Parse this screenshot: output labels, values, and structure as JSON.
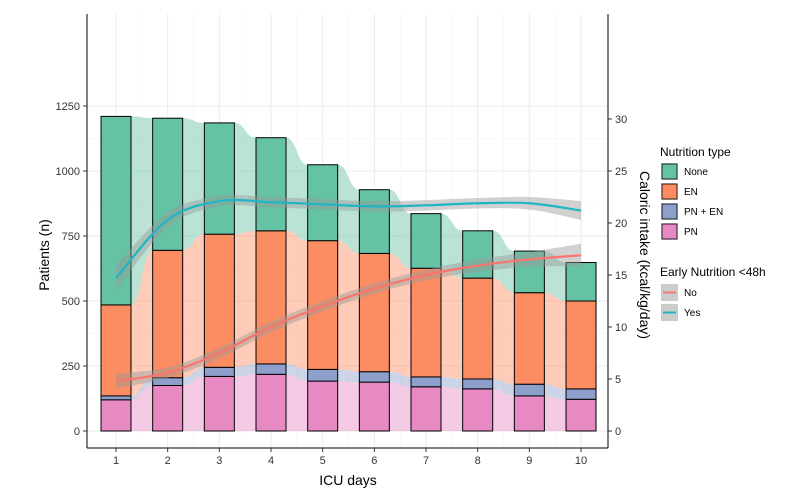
{
  "chart_data": {
    "type": "bar",
    "categories": [
      "1",
      "2",
      "3",
      "4",
      "5",
      "6",
      "7",
      "8",
      "9",
      "10"
    ],
    "xlabel": "ICU days",
    "ylabel": "Patients (n)",
    "y2label": "Caloric intake (kcal/kg/day)",
    "ylim": [
      0,
      1250
    ],
    "y2lim": [
      0,
      31
    ],
    "yticks": [
      "0",
      "250",
      "500",
      "750",
      "1000",
      "1250"
    ],
    "y2ticks": [
      "0",
      "5",
      "10",
      "15",
      "20",
      "25",
      "30"
    ],
    "stack_order": [
      "PN",
      "PN + EN",
      "EN",
      "None"
    ],
    "series": [
      {
        "name": "None",
        "color": "#66c2a5",
        "values": [
          725,
          508,
          428,
          358,
          292,
          245,
          210,
          182,
          160,
          148
        ]
      },
      {
        "name": "EN",
        "color": "#fc8d62",
        "values": [
          350,
          490,
          512,
          512,
          495,
          455,
          418,
          388,
          352,
          338
        ]
      },
      {
        "name": "PN + EN",
        "color": "#8da0cb",
        "values": [
          15,
          30,
          35,
          40,
          45,
          40,
          38,
          38,
          45,
          40
        ]
      },
      {
        "name": "PN",
        "color": "#e78ac3",
        "values": [
          120,
          175,
          210,
          218,
          192,
          188,
          170,
          162,
          135,
          122
        ]
      }
    ],
    "lines": [
      {
        "name": "No",
        "color": "#f8766d",
        "values": [
          4.8,
          5.6,
          7.5,
          10.0,
          12.0,
          13.7,
          15.0,
          15.9,
          16.5,
          16.9
        ],
        "band": [
          0.7,
          0.5,
          0.5,
          0.5,
          0.5,
          0.5,
          0.5,
          0.6,
          0.7,
          1.1
        ]
      },
      {
        "name": "Yes",
        "color": "#1fb5c4",
        "values": [
          14.7,
          20.3,
          22.1,
          22.0,
          21.8,
          21.6,
          21.7,
          21.9,
          21.9,
          21.2
        ],
        "band": [
          1.2,
          0.7,
          0.5,
          0.5,
          0.5,
          0.5,
          0.5,
          0.5,
          0.6,
          0.9
        ]
      }
    ],
    "legend": {
      "placement": "right",
      "title1": "Nutrition type",
      "items1": [
        "None",
        "EN",
        "PN + EN",
        "PN"
      ],
      "title2": "Early Nutrition <48h",
      "items2": [
        "No",
        "Yes"
      ]
    },
    "grid": true
  }
}
